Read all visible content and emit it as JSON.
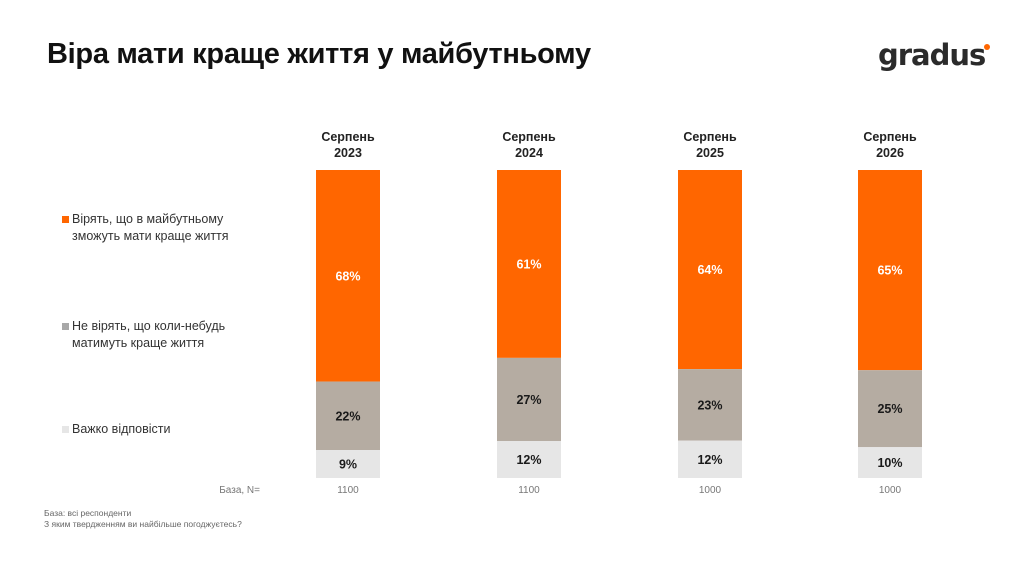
{
  "title": "Віра мати краще життя у майбутньому",
  "logo": "gradus",
  "colors": {
    "orange": "#ff6600",
    "gray": "#b5aca2",
    "light": "#e6e6e6",
    "logo_dot": "#ff6600"
  },
  "legend": [
    {
      "label": "Вірять, що в майбутньому зможуть мати краще життя",
      "color": "#ff6600"
    },
    {
      "label": "Не вірять, що коли-небудь матимуть краще життя",
      "color": "#a8a8a8"
    },
    {
      "label": "Важко відповісти",
      "color": "#e6e6e6"
    }
  ],
  "base_label": "База, N=",
  "footnote": {
    "line1": "База: всі респонденти",
    "line2": "З яким твердженням ви найбільше погоджуєтесь?"
  },
  "chart_data": {
    "type": "bar",
    "stacked": true,
    "categories": [
      "Серпень 2023",
      "Серпень 2024",
      "Серпень 2025",
      "Серпень 2026"
    ],
    "category_lines": [
      [
        "Серпень",
        "2023"
      ],
      [
        "Серпень",
        "2024"
      ],
      [
        "Серпень",
        "2025"
      ],
      [
        "Серпень",
        "2026"
      ]
    ],
    "series": [
      {
        "name": "Вірять, що в майбутньому зможуть мати краще життя",
        "values": [
          68,
          61,
          64,
          65
        ],
        "labels": [
          "68%",
          "61%",
          "64%",
          "65%"
        ],
        "color": "#ff6600",
        "label_color": "#ffffff"
      },
      {
        "name": "Не вірять, що коли-небудь матимуть краще життя",
        "values": [
          22,
          27,
          23,
          25
        ],
        "labels": [
          "22%",
          "27%",
          "23%",
          "25%"
        ],
        "color": "#b5aca2",
        "label_color": "#1a1a1a"
      },
      {
        "name": "Важко відповісти",
        "values": [
          9,
          12,
          12,
          10
        ],
        "labels": [
          "9%",
          "12%",
          "12%",
          "10%"
        ],
        "color": "#e6e6e6",
        "label_color": "#1a1a1a"
      }
    ],
    "base_n": [
      "1100",
      "1100",
      "1000",
      "1000"
    ]
  }
}
